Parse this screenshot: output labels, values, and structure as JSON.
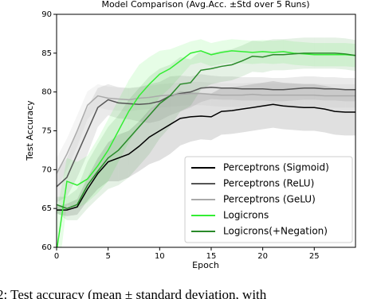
{
  "chart_data": {
    "type": "line",
    "title": "Model Comparison (Avg.Acc. ±Std over 5 Runs)",
    "x_label": "Epoch",
    "y_label": "Test Accuracy",
    "x": [
      0,
      1,
      2,
      3,
      4,
      5,
      6,
      7,
      8,
      9,
      10,
      11,
      12,
      13,
      14,
      15,
      16,
      17,
      18,
      19,
      20,
      21,
      22,
      23,
      24,
      25,
      26,
      27,
      28,
      29
    ],
    "xlim": [
      0,
      29
    ],
    "xticks": [
      0,
      5,
      10,
      15,
      20,
      25
    ],
    "ylim": [
      60,
      90
    ],
    "yticks": [
      60,
      65,
      70,
      75,
      80,
      85,
      90
    ],
    "legend": "lower right",
    "series": [
      {
        "name": "Perceptrons (Sigmoid)",
        "color": "#000000",
        "values": [
          64.8,
          64.8,
          65.2,
          67.5,
          69.5,
          71,
          71.5,
          72,
          73,
          74.2,
          75,
          75.8,
          76.6,
          76.8,
          76.9,
          76.8,
          77.5,
          77.6,
          77.8,
          78,
          78.2,
          78.4,
          78.2,
          78.1,
          78,
          78,
          77.8,
          77.5,
          77.4,
          77.4
        ],
        "std": [
          0.5,
          0.8,
          1,
          1.5,
          2,
          2.5,
          3,
          3,
          3.2,
          3.5,
          3.8,
          3.8,
          3.5,
          3.2,
          3,
          3,
          3,
          3,
          3,
          3,
          3,
          3,
          3,
          3,
          3,
          3,
          3,
          3,
          3,
          3
        ]
      },
      {
        "name": "Perceptrons (ReLU)",
        "color": "#555555",
        "values": [
          67.8,
          69,
          72,
          75,
          78,
          79,
          78.6,
          78.5,
          78.4,
          78.5,
          78.8,
          79.5,
          79.8,
          80,
          80.5,
          80.6,
          80.5,
          80.5,
          80.4,
          80.4,
          80.4,
          80.3,
          80.3,
          80.4,
          80.5,
          80.5,
          80.4,
          80.4,
          80.3,
          80.3
        ],
        "std": [
          2,
          2.5,
          3,
          3,
          2.5,
          2,
          2,
          2,
          2.2,
          2.5,
          2.5,
          2.5,
          2.3,
          2,
          1.8,
          1.5,
          1.5,
          1.5,
          1.5,
          1.5,
          1.5,
          1.5,
          1.5,
          1.5,
          1.5,
          1.5,
          1.5,
          1.5,
          1.5,
          1.5
        ]
      },
      {
        "name": "Perceptrons (GeLU)",
        "color": "#aaaaaa",
        "values": [
          69.5,
          72,
          75,
          78.3,
          79.5,
          79.2,
          79.1,
          79,
          79.2,
          79.3,
          79.5,
          79.6,
          79.7,
          79.8,
          79.8,
          79.7,
          79.6,
          79.6,
          79.6,
          79.7,
          79.6,
          79.6,
          79.6,
          79.6,
          79.6,
          79.6,
          79.5,
          79.5,
          79.5,
          79.5
        ],
        "std": [
          2,
          2,
          2,
          1.8,
          1.5,
          1.5,
          1.5,
          1.5,
          1.5,
          1.5,
          1.5,
          1.5,
          1.5,
          1.5,
          1.5,
          1.5,
          1.5,
          1.5,
          1.5,
          1.5,
          1.5,
          1.5,
          1.5,
          1.5,
          1.5,
          1.5,
          1.5,
          1.5,
          1.5,
          1.5
        ]
      },
      {
        "name": "Logicrons",
        "color": "#33ee33",
        "values": [
          59.5,
          68.5,
          68,
          68.8,
          70.5,
          72.5,
          75,
          77.5,
          79.5,
          81,
          82.3,
          83,
          84,
          85,
          85.3,
          84.8,
          85.1,
          85.3,
          85.2,
          85.1,
          85.2,
          85.1,
          85.2,
          85,
          84.9,
          84.8,
          84.8,
          84.8,
          84.8,
          84.7
        ],
        "std": [
          5,
          3,
          3,
          3,
          3.5,
          4,
          4,
          4,
          4,
          3.5,
          3,
          2.5,
          2,
          1.5,
          1.5,
          1.5,
          1.5,
          1.5,
          1.5,
          1.5,
          1.5,
          1.5,
          1.5,
          1.5,
          1.5,
          1.5,
          1.5,
          1.5,
          1.5,
          1.5
        ]
      },
      {
        "name": "Logicrons(+Negation)",
        "color": "#2a8a2a",
        "values": [
          65.5,
          65,
          65.5,
          68,
          69.8,
          71.5,
          72.5,
          74,
          75.5,
          77,
          78.5,
          79.5,
          81,
          81.2,
          82.8,
          83,
          83.3,
          83.5,
          84,
          84.6,
          84.5,
          84.8,
          84.8,
          84.9,
          85,
          85,
          85,
          85,
          84.9,
          84.7
        ],
        "std": [
          1,
          1.5,
          2,
          3,
          3.5,
          4,
          4.5,
          5,
          5,
          5,
          4.5,
          4,
          3.5,
          3,
          2.5,
          2,
          2,
          2,
          2,
          2,
          2,
          2,
          2,
          2,
          2,
          2,
          2,
          2,
          2,
          2
        ]
      }
    ]
  },
  "caption": "2: Test accuracy (mean ± standard deviation, with"
}
